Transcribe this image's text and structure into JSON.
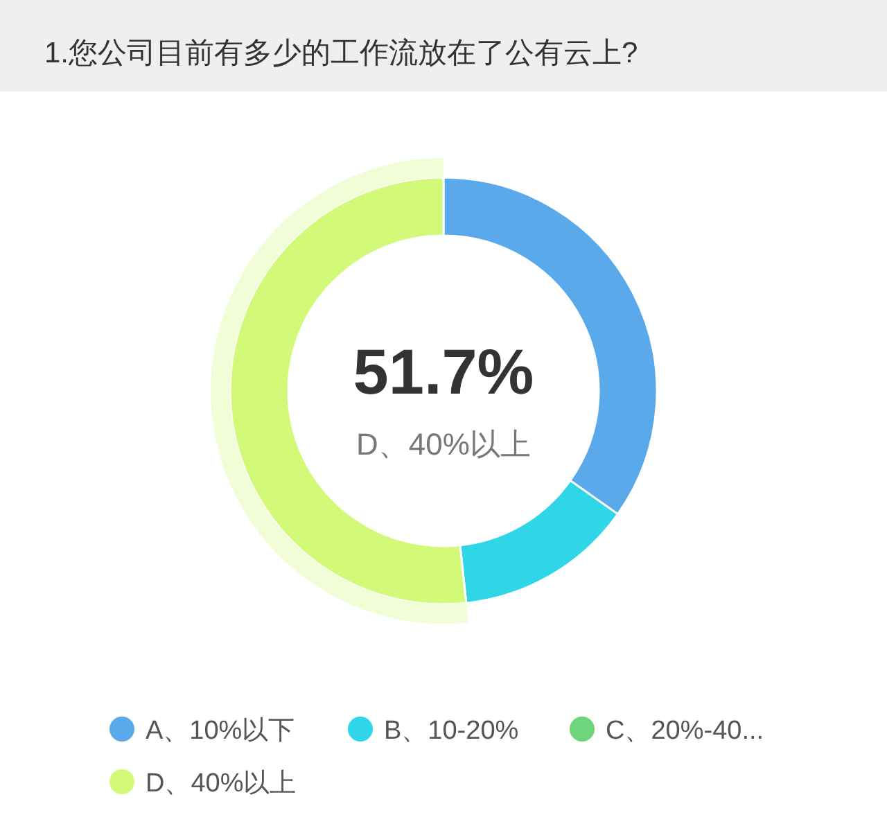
{
  "chart_data": {
    "type": "donut",
    "title": "1.您公司目前有多少的工作流放在了公有云上?",
    "categories": [
      "A、10%以下",
      "B、10-20%",
      "C、20%-40...",
      "D、40%以上"
    ],
    "values": [
      34.8,
      13.5,
      0,
      51.7
    ],
    "colors": [
      "#5aa9ea",
      "#2fd6e8",
      "#6dd67c",
      "#d2fa78"
    ],
    "annotations": [
      "51.7%",
      "D、40%以上"
    ],
    "legend": "bottom"
  }
}
